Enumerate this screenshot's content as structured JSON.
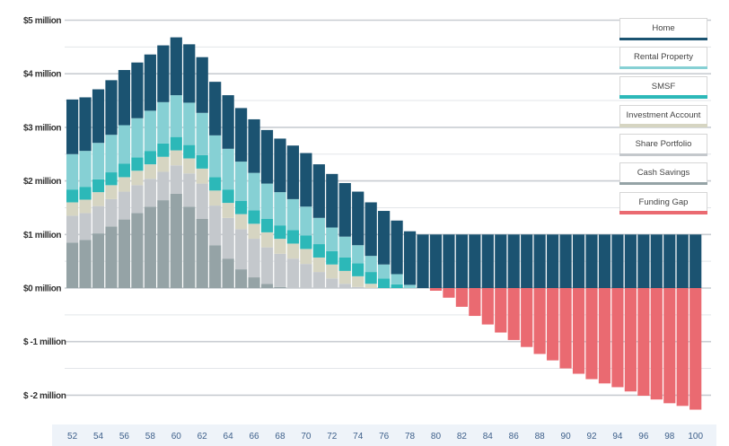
{
  "chart_data": {
    "type": "bar",
    "stacked": true,
    "title": "",
    "xlabel": "",
    "ylabel": "",
    "ylim": [
      -2.3,
      5
    ],
    "y_ticks": [
      {
        "value": 5,
        "label": "$5 million"
      },
      {
        "value": 4,
        "label": "$4 million"
      },
      {
        "value": 3,
        "label": "$3 million"
      },
      {
        "value": 2,
        "label": "$2 million"
      },
      {
        "value": 1,
        "label": "$1 million"
      },
      {
        "value": 0,
        "label": "$0 million"
      },
      {
        "value": -1,
        "label": "$ -1 million"
      },
      {
        "value": -2,
        "label": "$ -2 million"
      }
    ],
    "grid": true,
    "legend_position": "right",
    "categories": [
      52,
      53,
      54,
      55,
      56,
      57,
      58,
      59,
      60,
      61,
      62,
      63,
      64,
      65,
      66,
      67,
      68,
      69,
      70,
      71,
      72,
      73,
      74,
      75,
      76,
      77,
      78,
      79,
      80,
      81,
      82,
      83,
      84,
      85,
      86,
      87,
      88,
      89,
      90,
      91,
      92,
      93,
      94,
      95,
      96,
      97,
      98,
      99,
      100
    ],
    "x_tick_labels": [
      "52",
      "54",
      "56",
      "58",
      "60",
      "62",
      "64",
      "66",
      "68",
      "70",
      "72",
      "74",
      "76",
      "78",
      "80",
      "82",
      "84",
      "86",
      "88",
      "90",
      "92",
      "94",
      "96",
      "98",
      "100"
    ],
    "series": [
      {
        "name": "Cash Savings",
        "color": "#95a3a6",
        "values": [
          0.85,
          0.9,
          1.02,
          1.15,
          1.28,
          1.4,
          1.52,
          1.64,
          1.76,
          1.52,
          1.29,
          0.8,
          0.55,
          0.35,
          0.2,
          0.08,
          0.02,
          0,
          0,
          0,
          0,
          0,
          0,
          0,
          0,
          0,
          0,
          0,
          0,
          0,
          0,
          0,
          0,
          0,
          0,
          0,
          0,
          0,
          0,
          0,
          0,
          0,
          0,
          0,
          0,
          0,
          0,
          0,
          0
        ]
      },
      {
        "name": "Share Portfolio",
        "color": "#c4c8cc",
        "values": [
          0.5,
          0.5,
          0.51,
          0.51,
          0.52,
          0.52,
          0.52,
          0.53,
          0.53,
          0.62,
          0.66,
          0.74,
          0.76,
          0.75,
          0.72,
          0.68,
          0.62,
          0.55,
          0.45,
          0.3,
          0.18,
          0.08,
          0.02,
          0,
          0,
          0,
          0,
          0,
          0,
          0,
          0,
          0,
          0,
          0,
          0,
          0,
          0,
          0,
          0,
          0,
          0,
          0,
          0,
          0,
          0,
          0,
          0,
          0,
          0
        ]
      },
      {
        "name": "Investment Account",
        "color": "#d6d5c2",
        "values": [
          0.25,
          0.25,
          0.26,
          0.26,
          0.27,
          0.27,
          0.27,
          0.28,
          0.28,
          0.28,
          0.28,
          0.28,
          0.28,
          0.28,
          0.28,
          0.28,
          0.28,
          0.28,
          0.28,
          0.27,
          0.26,
          0.24,
          0.2,
          0.08,
          0,
          0,
          0,
          0,
          0,
          0,
          0,
          0,
          0,
          0,
          0,
          0,
          0,
          0,
          0,
          0,
          0,
          0,
          0,
          0,
          0,
          0,
          0,
          0,
          0
        ]
      },
      {
        "name": "SMSF",
        "color": "#2cb8b8",
        "values": [
          0.24,
          0.24,
          0.24,
          0.24,
          0.25,
          0.25,
          0.25,
          0.25,
          0.25,
          0.25,
          0.25,
          0.25,
          0.25,
          0.25,
          0.25,
          0.25,
          0.25,
          0.25,
          0.25,
          0.25,
          0.25,
          0.25,
          0.24,
          0.22,
          0.18,
          0.07,
          0,
          0,
          0,
          0,
          0,
          0,
          0,
          0,
          0,
          0,
          0,
          0,
          0,
          0,
          0,
          0,
          0,
          0,
          0,
          0,
          0,
          0,
          0
        ]
      },
      {
        "name": "Rental Property",
        "color": "#86d0d4",
        "values": [
          0.66,
          0.67,
          0.68,
          0.7,
          0.72,
          0.73,
          0.75,
          0.77,
          0.78,
          0.79,
          0.79,
          0.78,
          0.76,
          0.73,
          0.7,
          0.66,
          0.62,
          0.58,
          0.54,
          0.49,
          0.44,
          0.39,
          0.34,
          0.3,
          0.26,
          0.19,
          0.06,
          0,
          0,
          0,
          0,
          0,
          0,
          0,
          0,
          0,
          0,
          0,
          0,
          0,
          0,
          0,
          0,
          0,
          0,
          0,
          0,
          0,
          0
        ]
      },
      {
        "name": "Home",
        "color": "#1b5371",
        "values": [
          1.02,
          1.0,
          1.0,
          1.02,
          1.03,
          1.04,
          1.05,
          1.06,
          1.08,
          1.09,
          1.04,
          1.0,
          1.0,
          1.0,
          1.0,
          1.0,
          1.0,
          1.0,
          1.0,
          1.0,
          1.0,
          1.0,
          1.0,
          1.0,
          1.0,
          1.0,
          1.0,
          1.0,
          1.0,
          1.0,
          1.0,
          1.0,
          1.0,
          1.0,
          1.0,
          1.0,
          1.0,
          1.0,
          1.0,
          1.0,
          1.0,
          1.0,
          1.0,
          1.0,
          1.0,
          1.0,
          1.0,
          1.0,
          1.0
        ]
      },
      {
        "name": "Funding Gap",
        "color": "#ea6a71",
        "values": [
          0,
          0,
          0,
          0,
          0,
          0,
          0,
          0,
          0,
          0,
          0,
          0,
          0,
          0,
          0,
          0,
          0,
          0,
          0,
          0,
          0,
          0,
          0,
          0,
          0,
          0,
          0,
          0,
          -0.05,
          -0.18,
          -0.35,
          -0.52,
          -0.68,
          -0.83,
          -0.97,
          -1.1,
          -1.23,
          -1.35,
          -1.5,
          -1.6,
          -1.7,
          -1.78,
          -1.85,
          -1.93,
          -2.01,
          -2.08,
          -2.15,
          -2.2,
          -2.27
        ]
      }
    ]
  },
  "legend": [
    {
      "label": "Home",
      "color": "#1b5371"
    },
    {
      "label": "Rental Property",
      "color": "#86d0d4"
    },
    {
      "label": "SMSF",
      "color": "#2cb8b8"
    },
    {
      "label": "Investment Account",
      "color": "#d6d5c2"
    },
    {
      "label": "Share Portfolio",
      "color": "#c4c8cc"
    },
    {
      "label": "Cash Savings",
      "color": "#95a3a6"
    },
    {
      "label": "Funding Gap",
      "color": "#ea6a71"
    }
  ]
}
